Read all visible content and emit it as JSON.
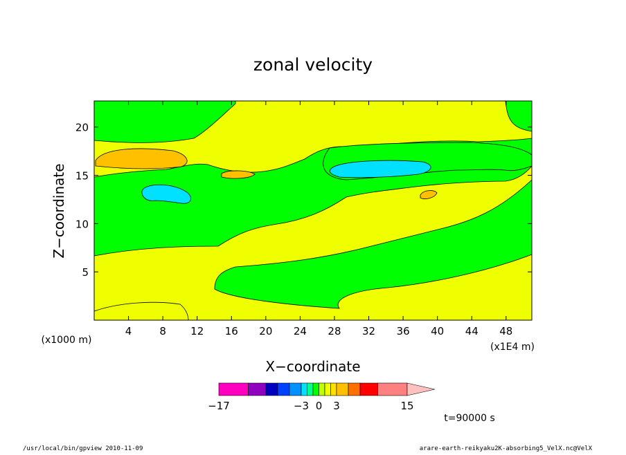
{
  "chart_data": {
    "type": "heatmap",
    "title": "zonal velocity",
    "xlabel": "X−coordinate",
    "ylabel": "Z−coordinate",
    "x_unit": "(x1E4 m)",
    "y_unit": "(x1000 m)",
    "x_ticks": [
      4,
      8,
      12,
      16,
      20,
      24,
      28,
      32,
      36,
      40,
      44,
      48
    ],
    "y_ticks": [
      5,
      10,
      15,
      20
    ],
    "xlim": [
      0,
      51
    ],
    "ylim": [
      0,
      22.7
    ],
    "time_label": "t=90000 s",
    "colorbar": {
      "tick_labels": [
        "−17",
        "−3",
        "0",
        "3",
        "15"
      ],
      "levels": [
        -17,
        -12,
        -9,
        -7,
        -5,
        -3,
        -2,
        -1,
        0,
        1,
        2,
        3,
        5,
        7,
        10,
        15,
        20
      ],
      "colors": [
        "#ff00c0",
        "#9000c0",
        "#0000c0",
        "#0040ff",
        "#0090ff",
        "#00e0ff",
        "#00ff90",
        "#00ff00",
        "#c0ff00",
        "#f0ff00",
        "#ffe000",
        "#ffc000",
        "#ff7000",
        "#ff0000",
        "#ff8080",
        "#ffc0c0"
      ]
    }
  },
  "footer": {
    "left": "/usr/local/bin/gpview  2010-11-09",
    "right": "arare-earth-reikyaku2K-absorbing5_VelX.nc@VelX"
  }
}
